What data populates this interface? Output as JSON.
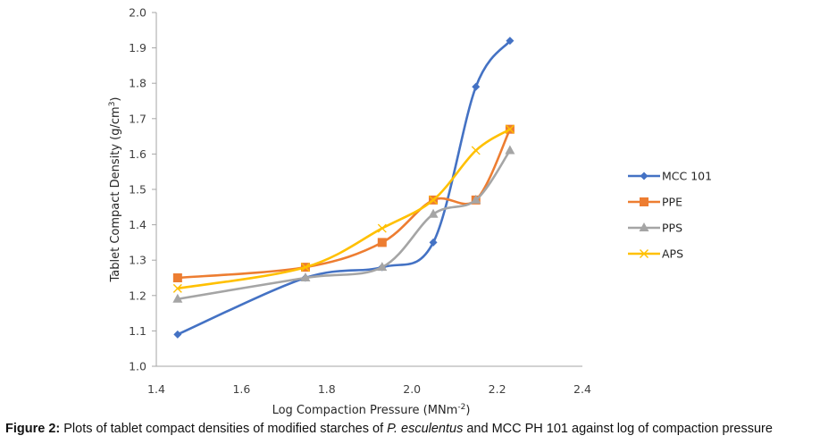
{
  "chart_data": {
    "type": "line",
    "smooth": true,
    "title": "",
    "xlabel": "Log Compaction Pressure (MNm",
    "xlabel_sup": "-2",
    "xlabel_end": ")",
    "ylabel": "Tablet Compact Density (g/cm",
    "ylabel_sup": "3",
    "ylabel_end": ")",
    "xlim": [
      1.4,
      2.4
    ],
    "ylim": [
      1.0,
      2.0
    ],
    "xticks": [
      "1.4",
      "1.6",
      "1.8",
      "2.0",
      "2.2",
      "2.4"
    ],
    "xtick_values": [
      1.4,
      1.6,
      1.8,
      2.0,
      2.2,
      2.4
    ],
    "yticks": [
      "1.0",
      "1.1",
      "1.2",
      "1.3",
      "1.4",
      "1.5",
      "1.6",
      "1.7",
      "1.8",
      "1.9",
      "2.0"
    ],
    "ytick_values": [
      1.0,
      1.1,
      1.2,
      1.3,
      1.4,
      1.5,
      1.6,
      1.7,
      1.8,
      1.9,
      2.0
    ],
    "grid": false,
    "legend_position": "right",
    "x": [
      1.45,
      1.75,
      1.93,
      2.05,
      2.15,
      2.23
    ],
    "series": [
      {
        "name": "MCC 101",
        "color": "#4472C4",
        "marker": "diamond",
        "values": [
          1.09,
          1.25,
          1.28,
          1.35,
          1.79,
          1.92
        ]
      },
      {
        "name": "PPE",
        "color": "#ED7D31",
        "marker": "square",
        "values": [
          1.25,
          1.28,
          1.35,
          1.47,
          1.47,
          1.67
        ]
      },
      {
        "name": "PPS",
        "color": "#A5A5A5",
        "marker": "triangle",
        "values": [
          1.19,
          1.25,
          1.28,
          1.43,
          1.47,
          1.61
        ]
      },
      {
        "name": "APS",
        "color": "#FFC000",
        "marker": "x",
        "values": [
          1.22,
          1.28,
          1.39,
          1.47,
          1.61,
          1.67
        ]
      }
    ]
  },
  "caption": {
    "label": "Figure 2:",
    "text_before": " Plots of tablet compact densities of modified starches of ",
    "species": "P. esculentus",
    "text_after": " and MCC PH 101 against log of compaction pressure"
  }
}
